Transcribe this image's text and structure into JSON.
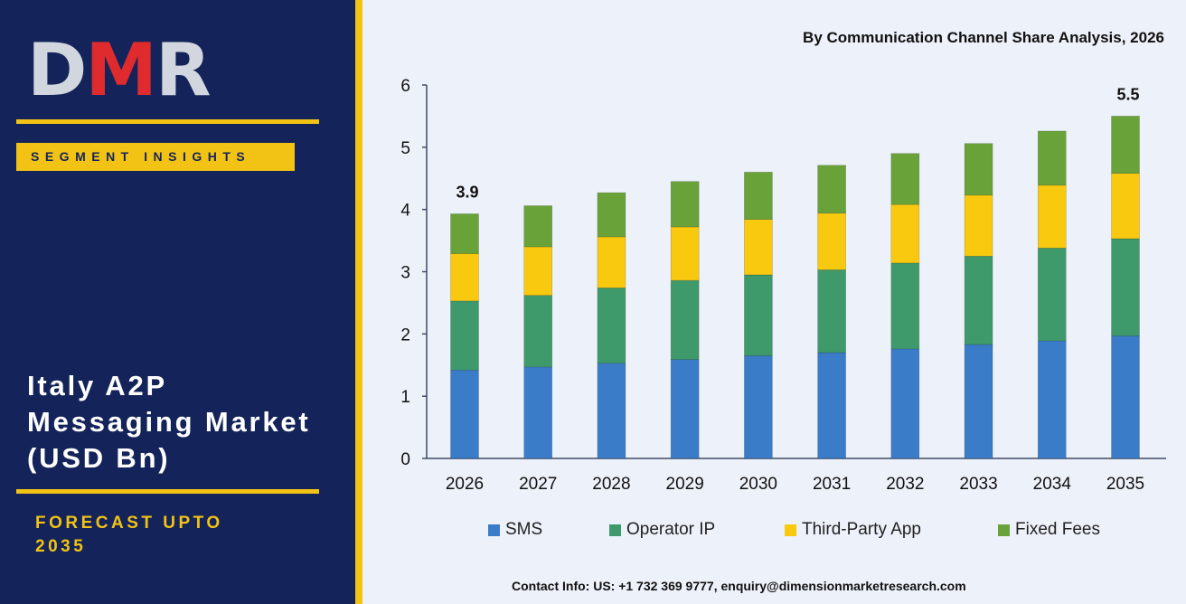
{
  "brand": {
    "logo_letters": [
      "D",
      "M",
      "R"
    ],
    "segment_label": "SEGMENT INSIGHTS",
    "title_lines": [
      "Italy A2P",
      "Messaging Market",
      "(USD Bn)"
    ],
    "forecast_lines": [
      "FORECAST UPTO",
      "2035"
    ],
    "colors": {
      "navy": "#14245a",
      "gold": "#f2c314",
      "logo_red": "#e02b2e",
      "logo_grey": "#d2d7df"
    }
  },
  "contact": "Contact Info: US: +1 732 369 9777, enquiry@dimensionmarketresearch.com",
  "chart_data": {
    "type": "bar",
    "stacked": true,
    "title": "By Communication Channel Share Analysis, 2026",
    "categories": [
      "2026",
      "2027",
      "2028",
      "2029",
      "2030",
      "2031",
      "2032",
      "2033",
      "2034",
      "2035"
    ],
    "series": [
      {
        "name": "SMS",
        "color": "#3a7cc7",
        "values": [
          1.42,
          1.47,
          1.53,
          1.59,
          1.65,
          1.7,
          1.76,
          1.83,
          1.89,
          1.97
        ]
      },
      {
        "name": "Operator IP",
        "color": "#3e9a6b",
        "values": [
          1.11,
          1.15,
          1.21,
          1.27,
          1.3,
          1.33,
          1.38,
          1.42,
          1.49,
          1.56
        ]
      },
      {
        "name": "Third-Party App",
        "color": "#f9c90f",
        "values": [
          0.76,
          0.78,
          0.82,
          0.86,
          0.89,
          0.91,
          0.94,
          0.98,
          1.01,
          1.05
        ]
      },
      {
        "name": "Fixed Fees",
        "color": "#6aa23a",
        "values": [
          0.64,
          0.66,
          0.71,
          0.73,
          0.76,
          0.77,
          0.82,
          0.83,
          0.87,
          0.92
        ]
      }
    ],
    "data_labels": [
      {
        "category": "2026",
        "text": "3.9"
      },
      {
        "category": "2035",
        "text": "5.5"
      }
    ],
    "ylim": [
      0,
      6
    ],
    "yticks": [
      "0",
      "1",
      "2",
      "3",
      "4",
      "5",
      "6"
    ],
    "xlabel": "",
    "ylabel": "",
    "grid": false,
    "legend_position": "bottom"
  }
}
